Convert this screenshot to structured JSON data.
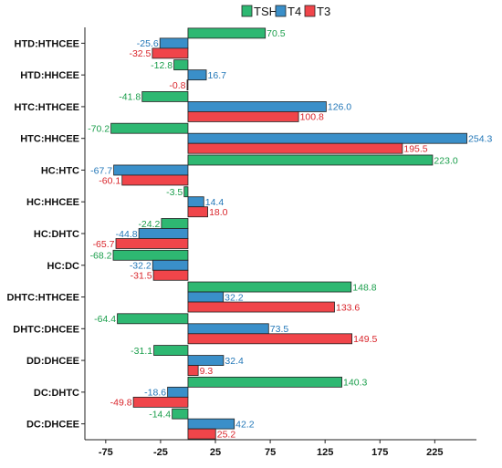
{
  "chart_data": {
    "type": "bar",
    "orientation": "horizontal",
    "title": "",
    "xlabel": "",
    "ylabel": "",
    "categories": [
      "HTD:HTHCEE",
      "HTD:HHCEE",
      "HTC:HTHCEE",
      "HTC:HHCEE",
      "HC:HTC",
      "HC:HHCEE",
      "HC:DHTC",
      "HC:DC",
      "DHTC:HTHCEE",
      "DHTC:DHCEE",
      "DD:DHCEE",
      "DC:DHTC",
      "DC:DHCEE"
    ],
    "series": [
      {
        "name": "TSH",
        "color": "#2eb872",
        "label_color": "#1a9e4b",
        "values": [
          70.5,
          -12.8,
          -41.8,
          -70.2,
          223.0,
          -3.5,
          -24.2,
          -68.2,
          148.8,
          -64.4,
          -31.1,
          140.3,
          -14.4
        ],
        "labels": [
          "70.5",
          "-12.8",
          "-41.8",
          "-70.2",
          "223.0",
          "-3.5",
          "-24.2",
          "-68.2",
          "148.8",
          "-64.4",
          "-31.1",
          "140.3",
          "-14.4"
        ]
      },
      {
        "name": "T4",
        "color": "#3a8fc9",
        "label_color": "#2277b8",
        "values": [
          -25.6,
          16.7,
          126.0,
          254.3,
          -67.7,
          14.4,
          -44.8,
          -32.2,
          32.2,
          73.5,
          32.4,
          -18.6,
          42.2
        ],
        "labels": [
          "-25.6",
          "16.7",
          "126.0",
          "254.3",
          "-67.7",
          "14.4",
          "-44.8",
          "-32.2",
          "32.2",
          "73.5",
          "32.4",
          "-18.6",
          "42.2"
        ]
      },
      {
        "name": "T3",
        "color": "#f0454a",
        "label_color": "#d9252b",
        "values": [
          -32.5,
          -0.8,
          100.8,
          195.5,
          -60.1,
          18.0,
          -65.7,
          -31.5,
          133.6,
          149.5,
          9.3,
          -49.8,
          25.2
        ],
        "labels": [
          "-32.5",
          "-0.8",
          "100.8",
          "195.5",
          "-60.1",
          "18.0",
          "-65.7",
          "-31.5",
          "133.6",
          "149.5",
          "9.3",
          "-49.8",
          "25.2"
        ]
      }
    ],
    "xticks": [
      -75,
      -25,
      25,
      75,
      125,
      175,
      225
    ],
    "xtick_labels": [
      "-75",
      "-25",
      "25",
      "75",
      "125",
      "175",
      "225"
    ],
    "xlim": [
      -94,
      263
    ],
    "grid": false,
    "legend_position": "top",
    "bar_outline_color": "#222222"
  }
}
